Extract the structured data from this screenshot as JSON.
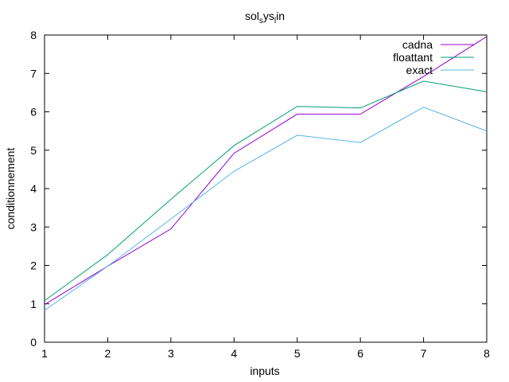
{
  "chart_data": {
    "type": "line",
    "title_main": "sol",
    "title_sub1": "s",
    "title_mid": "ys",
    "title_sub2": "l",
    "title_end": "in",
    "xlabel": "inputs",
    "ylabel": "conditionnement",
    "xlim": [
      1,
      8
    ],
    "ylim": [
      0,
      8
    ],
    "x": [
      1,
      2,
      3,
      4,
      5,
      6,
      7,
      8
    ],
    "x_ticks": [
      "1",
      "2",
      "3",
      "4",
      "5",
      "6",
      "7",
      "8"
    ],
    "y_ticks": [
      "0",
      "1",
      "2",
      "3",
      "4",
      "5",
      "6",
      "7",
      "8"
    ],
    "grid": false,
    "legend_position": "top-right",
    "series": [
      {
        "name": "cadna",
        "color": "#9400d3",
        "values": [
          0.98,
          1.98,
          2.95,
          4.92,
          5.94,
          5.94,
          6.92,
          7.96
        ]
      },
      {
        "name": "floattant",
        "color": "#009e73",
        "values": [
          1.08,
          2.28,
          3.72,
          5.12,
          6.14,
          6.1,
          6.8,
          6.52
        ]
      },
      {
        "name": "exact",
        "color": "#56b4e9",
        "values": [
          0.83,
          1.98,
          3.21,
          4.45,
          5.39,
          5.2,
          6.12,
          5.5
        ]
      }
    ]
  }
}
